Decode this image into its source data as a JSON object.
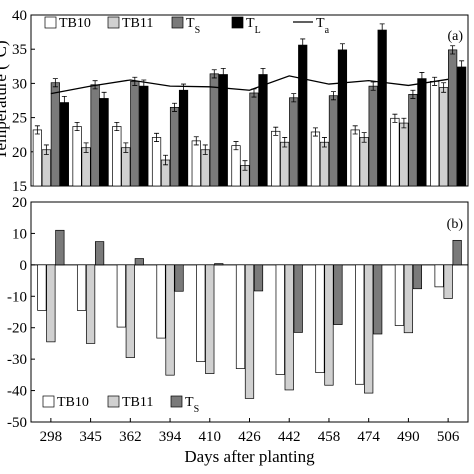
{
  "chart_data": [
    {
      "type": "bar",
      "panel_label": "(a)",
      "ylabel": "Temperature (°C)",
      "ylim": [
        15,
        40
      ],
      "yticks": [
        15,
        20,
        25,
        30,
        35,
        40
      ],
      "categories": [
        "298",
        "345",
        "362",
        "394",
        "410",
        "426",
        "442",
        "458",
        "474",
        "490",
        "506"
      ],
      "series": [
        {
          "name": "TB10",
          "color": "#ffffff",
          "values": [
            23.2,
            23.7,
            23.7,
            22.1,
            21.6,
            20.9,
            23.0,
            22.9,
            23.2,
            24.9,
            30.3
          ],
          "errors": [
            0.6,
            0.6,
            0.6,
            0.6,
            0.6,
            0.6,
            0.6,
            0.6,
            0.6,
            0.6,
            0.6
          ]
        },
        {
          "name": "TB11",
          "color": "#d0d0d0",
          "values": [
            20.3,
            20.6,
            20.6,
            18.8,
            20.3,
            18.0,
            21.4,
            21.4,
            22.1,
            24.2,
            29.4
          ],
          "errors": [
            0.7,
            0.7,
            0.7,
            0.7,
            0.7,
            0.7,
            0.7,
            0.7,
            0.7,
            0.7,
            0.7
          ]
        },
        {
          "name": "TS",
          "color": "#7a7a7a",
          "values": [
            30.1,
            29.8,
            30.3,
            26.5,
            31.4,
            28.6,
            27.9,
            28.2,
            29.6,
            28.4,
            34.9
          ],
          "errors": [
            0.6,
            0.6,
            0.6,
            0.6,
            0.6,
            0.6,
            0.6,
            0.6,
            0.6,
            0.6,
            0.6
          ]
        },
        {
          "name": "TL",
          "color": "#000000",
          "values": [
            27.2,
            27.8,
            29.6,
            29.0,
            31.3,
            31.3,
            35.6,
            34.9,
            37.8,
            30.7,
            32.4
          ],
          "errors": [
            0.9,
            0.9,
            0.9,
            0.9,
            0.9,
            0.9,
            0.9,
            0.9,
            0.9,
            0.9,
            0.9
          ]
        }
      ],
      "line_series": {
        "name": "Ta",
        "color": "#000000",
        "values": [
          28.5,
          29.6,
          30.5,
          29.6,
          29.5,
          29.0,
          31.1,
          29.9,
          30.4,
          29.7,
          30.6
        ]
      },
      "legend": [
        {
          "label": "TB10",
          "sub": "",
          "kind": "box",
          "color": "#ffffff"
        },
        {
          "label": "TB11",
          "sub": "",
          "kind": "box",
          "color": "#d0d0d0"
        },
        {
          "label": "T",
          "sub": "S",
          "kind": "box",
          "color": "#7a7a7a"
        },
        {
          "label": "T",
          "sub": "L",
          "kind": "box",
          "color": "#000000"
        },
        {
          "label": "T",
          "sub": "a",
          "kind": "line",
          "color": "#000000"
        }
      ],
      "legend_placement": "top",
      "grid": false
    },
    {
      "type": "bar",
      "panel_label": "(b)",
      "ylim": [
        -50,
        20
      ],
      "yticks": [
        -50,
        -40,
        -30,
        -20,
        -10,
        0,
        10,
        20
      ],
      "categories": [
        "298",
        "345",
        "362",
        "394",
        "410",
        "426",
        "442",
        "458",
        "474",
        "490",
        "506"
      ],
      "series": [
        {
          "name": "TB10",
          "color": "#ffffff",
          "values": [
            -14.5,
            -14.5,
            -19.8,
            -23.3,
            -30.8,
            -33.0,
            -34.9,
            -34.3,
            -38.0,
            -19.3,
            -7.0
          ]
        },
        {
          "name": "TB11",
          "color": "#d0d0d0",
          "values": [
            -24.5,
            -25.0,
            -29.5,
            -35.1,
            -34.6,
            -42.5,
            -39.8,
            -38.3,
            -40.8,
            -21.6,
            -10.7
          ]
        },
        {
          "name": "TS",
          "color": "#7a7a7a",
          "values": [
            11.0,
            7.4,
            2.0,
            -8.4,
            0.4,
            -8.3,
            -21.5,
            -19.0,
            -22.0,
            -7.6,
            7.8
          ]
        }
      ],
      "legend": [
        {
          "label": "TB10",
          "sub": "",
          "kind": "box",
          "color": "#ffffff"
        },
        {
          "label": "TB11",
          "sub": "",
          "kind": "box",
          "color": "#d0d0d0"
        },
        {
          "label": "T",
          "sub": "S",
          "kind": "box",
          "color": "#7a7a7a"
        }
      ],
      "legend_placement": "bottom-left",
      "grid": false
    }
  ],
  "xlabel": "Days after planting"
}
